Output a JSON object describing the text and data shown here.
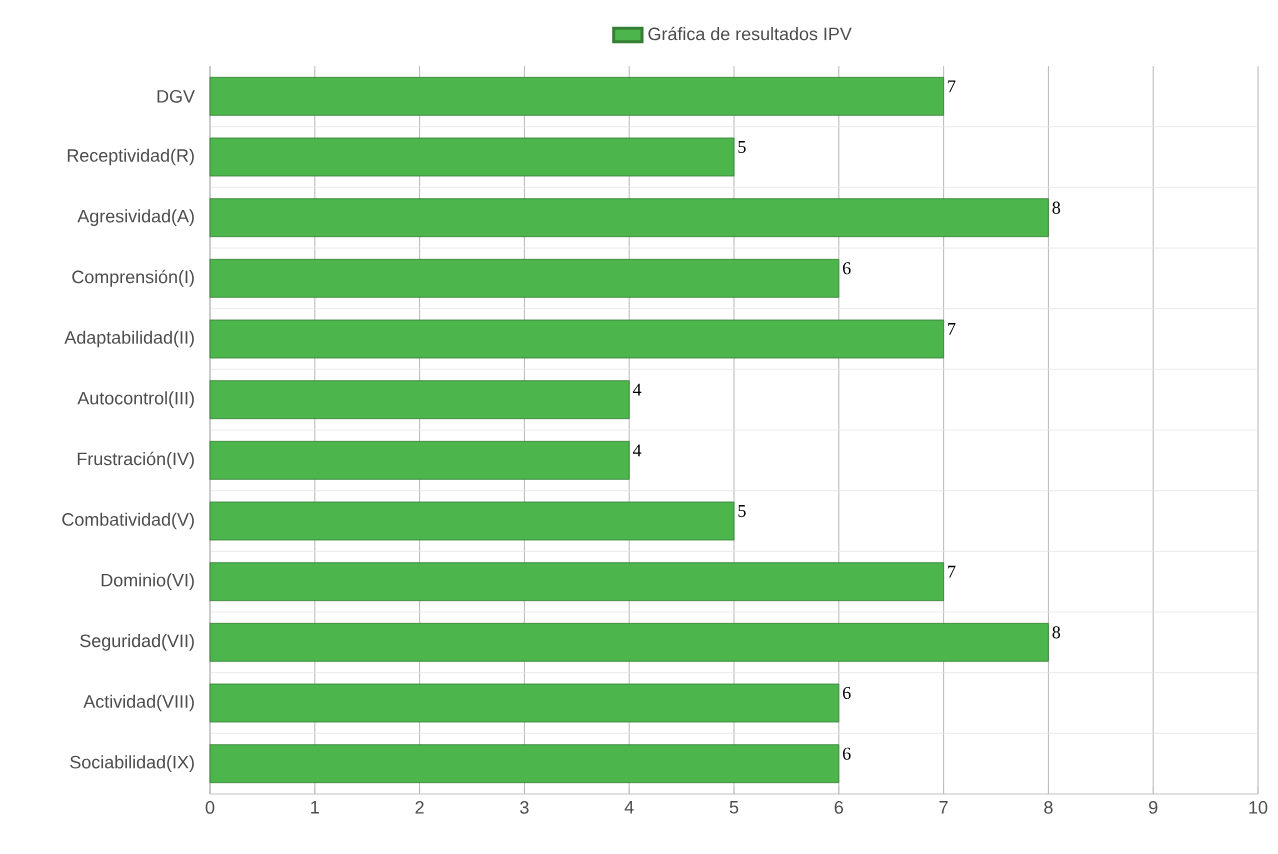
{
  "chart_data": {
    "type": "bar",
    "orientation": "horizontal",
    "categories": [
      "DGV",
      "Receptividad(R)",
      "Agresividad(A)",
      "Comprensión(I)",
      "Adaptabilidad(II)",
      "Autocontrol(III)",
      "Frustración(IV)",
      "Combatividad(V)",
      "Dominio(VI)",
      "Seguridad(VII)",
      "Actividad(VIII)",
      "Sociabilidad(IX)"
    ],
    "series": [
      {
        "name": "Gráfica de resultados IPV",
        "color": "#4cb54c",
        "values": [
          7,
          5,
          8,
          6,
          7,
          4,
          4,
          5,
          7,
          8,
          6,
          6
        ]
      }
    ],
    "xlim": [
      0,
      10
    ],
    "xticks": [
      0,
      1,
      2,
      3,
      4,
      5,
      6,
      7,
      8,
      9,
      10
    ],
    "grid": true,
    "legend": "top",
    "data_labels": true
  }
}
